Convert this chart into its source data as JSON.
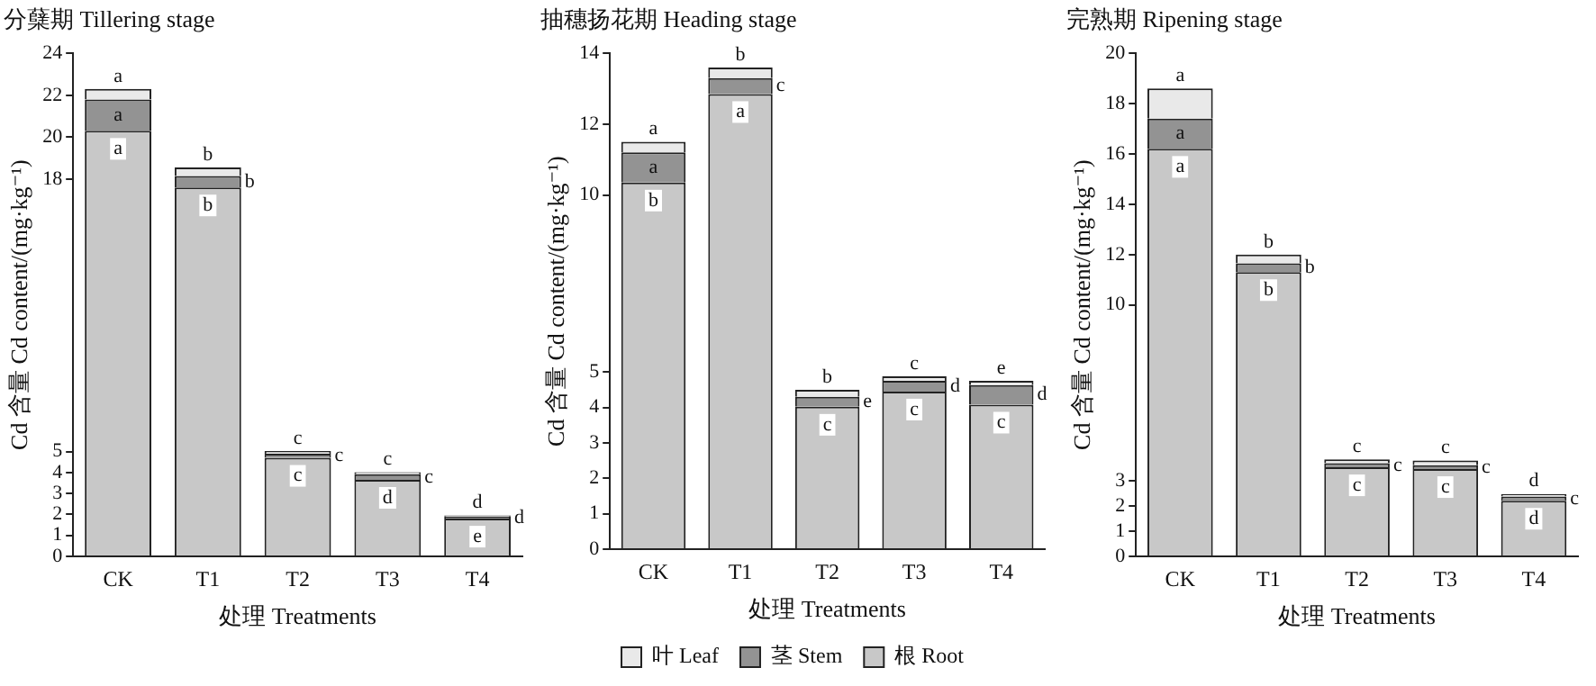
{
  "chart_data": [
    {
      "type": "bar",
      "stacked": true,
      "title": "分蘖期 Tillering stage",
      "xlabel": "处理 Treatments",
      "ylabel": "Cd 含量 Cd content/(mg·kg⁻¹)",
      "categories": [
        "CK",
        "T1",
        "T2",
        "T3",
        "T4"
      ],
      "series": [
        {
          "color": "#c8c8c8",
          "values": [
            20.3,
            17.6,
            4.7,
            3.65,
            1.8
          ],
          "value_labels": [
            "a",
            "b",
            "c",
            "d",
            "e"
          ]
        },
        {
          "color": "#939393",
          "values": [
            1.5,
            0.55,
            0.2,
            0.27,
            0.1
          ],
          "value_labels": [
            "a",
            "b",
            "c",
            "c",
            "d"
          ]
        },
        {
          "color": "#e9e9e9",
          "values": [
            0.5,
            0.4,
            0.12,
            0.1,
            0.05
          ],
          "value_labels": [
            "a",
            "b",
            "c",
            "c",
            "d"
          ]
        }
      ],
      "ylim": [
        0,
        24
      ],
      "yticks": [
        0,
        1,
        2,
        3,
        4,
        5,
        18,
        20,
        22,
        24
      ],
      "grid": false
    },
    {
      "type": "bar",
      "stacked": true,
      "title": "抽穗扬花期 Heading stage",
      "xlabel": "处理 Treatments",
      "ylabel": "Cd 含量 Cd content/(mg·kg⁻¹)",
      "categories": [
        "CK",
        "T1",
        "T2",
        "T3",
        "T4"
      ],
      "legend": "bottom",
      "series": [
        {
          "name": "根 Root",
          "color": "#c8c8c8",
          "values": [
            10.35,
            12.85,
            4.02,
            4.45,
            4.08
          ],
          "value_labels": [
            "b",
            "a",
            "c",
            "c",
            "c"
          ]
        },
        {
          "name": "茎 Stem",
          "color": "#939393",
          "values": [
            0.85,
            0.45,
            0.28,
            0.3,
            0.55
          ],
          "value_labels": [
            "a",
            "c",
            "e",
            "d",
            "d"
          ]
        },
        {
          "name": "叶 Leaf",
          "color": "#e9e9e9",
          "values": [
            0.3,
            0.3,
            0.2,
            0.13,
            0.12
          ],
          "value_labels": [
            "a",
            "b",
            "b",
            "c",
            "e"
          ]
        }
      ],
      "ylim": [
        0,
        14
      ],
      "yticks": [
        0,
        1,
        2,
        3,
        4,
        5,
        10,
        12,
        14
      ],
      "grid": false
    },
    {
      "type": "bar",
      "stacked": true,
      "title": "完熟期 Ripening stage",
      "xlabel": "处理 Treatments",
      "ylabel": "Cd 含量 Cd content/(mg·kg⁻¹)",
      "categories": [
        "CK",
        "T1",
        "T2",
        "T3",
        "T4"
      ],
      "series": [
        {
          "color": "#c8c8c8",
          "values": [
            16.2,
            11.3,
            3.54,
            3.47,
            2.21
          ],
          "value_labels": [
            "a",
            "b",
            "c",
            "c",
            "d"
          ]
        },
        {
          "color": "#939393",
          "values": [
            1.2,
            0.35,
            0.16,
            0.15,
            0.17
          ],
          "value_labels": [
            "a",
            "b",
            "c",
            "c",
            "c"
          ]
        },
        {
          "color": "#e9e9e9",
          "values": [
            1.2,
            0.35,
            0.16,
            0.19,
            0.1
          ],
          "value_labels": [
            "a",
            "b",
            "c",
            "c",
            "d"
          ]
        }
      ],
      "ylim": [
        0,
        20
      ],
      "yticks": [
        0,
        1,
        2,
        3,
        10,
        12,
        14,
        16,
        18,
        20
      ],
      "grid": false
    }
  ]
}
